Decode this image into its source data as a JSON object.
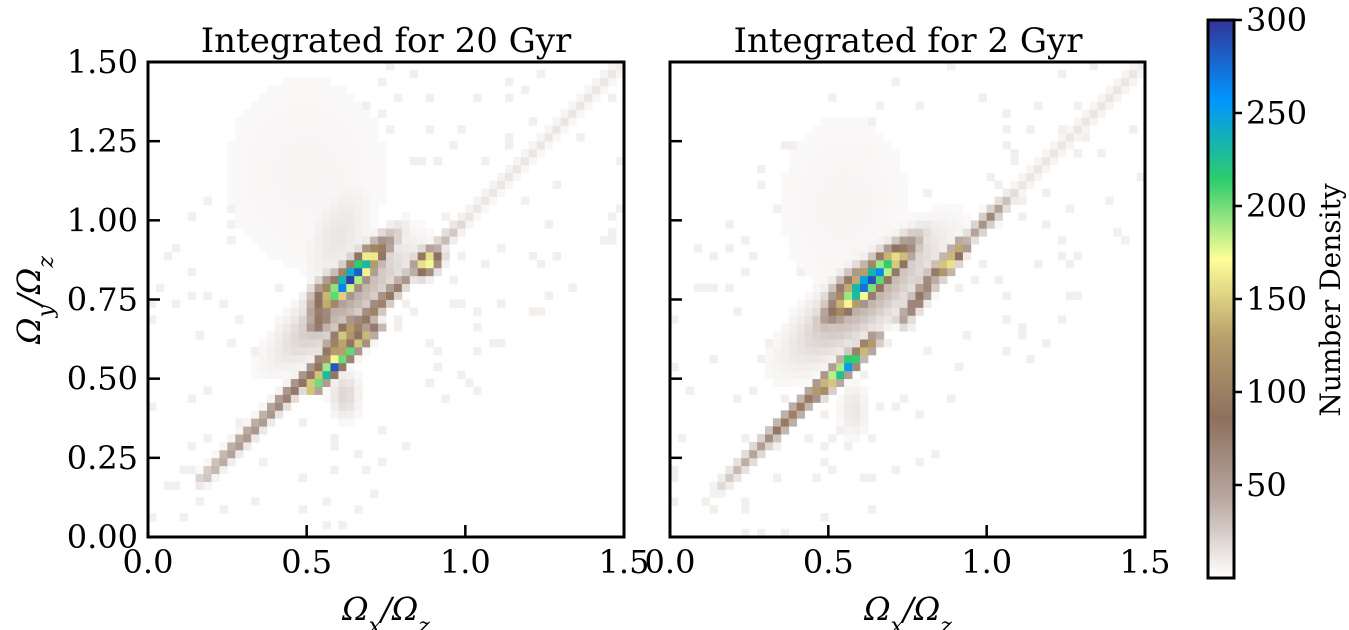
{
  "chart_data": [
    {
      "type": "heatmap",
      "title": "Integrated for 20 Gyr",
      "xlabel": "Ωx/Ωz",
      "ylabel": "Ωy/Ωz",
      "xlim": [
        0.0,
        1.5
      ],
      "ylim": [
        0.0,
        1.5
      ],
      "bin_size": 0.025,
      "xticks": [
        "0.0",
        "0.5",
        "1.0",
        "1.5"
      ],
      "yticks": [
        "0.00",
        "0.25",
        "0.50",
        "0.75",
        "1.00",
        "1.25",
        "1.50"
      ],
      "ridges": [
        {
          "x0": 0.17,
          "y0": 0.18,
          "x1": 1.48,
          "y1": 1.48,
          "base": 12,
          "peaks": [
            {
              "t": 0.12,
              "v": 60,
              "w": 0.1
            },
            {
              "t": 0.25,
              "v": 90,
              "w": 0.1
            },
            {
              "t": 0.33,
              "v": 140,
              "w": 0.06
            },
            {
              "t": 0.42,
              "v": 110,
              "w": 0.06
            },
            {
              "t": 0.55,
              "v": 40,
              "w": 0.06
            }
          ]
        }
      ],
      "streaks": [
        {
          "x0": 0.5,
          "y0": 0.46,
          "x1": 0.73,
          "y1": 0.68,
          "base": 40,
          "peaks": [
            {
              "t": 0.15,
              "v": 220,
              "w": 0.15
            },
            {
              "t": 0.35,
              "v": 300,
              "w": 0.15
            },
            {
              "t": 0.55,
              "v": 220,
              "w": 0.12
            },
            {
              "t": 0.75,
              "v": 160,
              "w": 0.12
            },
            {
              "t": 0.95,
              "v": 80,
              "w": 0.1
            }
          ]
        }
      ],
      "blobs": [
        {
          "x": 0.64,
          "y": 0.82,
          "amp": 300,
          "major": 0.09,
          "minor": 0.022,
          "angle": 45
        },
        {
          "x": 0.58,
          "y": 0.77,
          "amp": 150,
          "major": 0.05,
          "minor": 0.03,
          "angle": 45
        },
        {
          "x": 0.62,
          "y": 0.74,
          "amp": 40,
          "major": 0.16,
          "minor": 0.05,
          "angle": 40
        },
        {
          "x": 0.88,
          "y": 0.87,
          "amp": 200,
          "major": 0.03,
          "minor": 0.02,
          "angle": 45
        },
        {
          "x": 0.54,
          "y": 0.68,
          "amp": 100,
          "major": 0.03,
          "minor": 0.02,
          "angle": 45
        },
        {
          "x": 0.62,
          "y": 0.64,
          "amp": 150,
          "major": 0.05,
          "minor": 0.02,
          "angle": 45
        },
        {
          "x": 0.6,
          "y": 0.95,
          "amp": 12,
          "major": 0.12,
          "minor": 0.06,
          "angle": 70
        },
        {
          "x": 0.62,
          "y": 0.45,
          "amp": 20,
          "major": 0.05,
          "minor": 0.03,
          "angle": 90
        },
        {
          "x": 0.5,
          "y": 1.15,
          "amp": 5,
          "major": 0.3,
          "minor": 0.25,
          "angle": 90
        }
      ]
    },
    {
      "type": "heatmap",
      "title": "Integrated for 2 Gyr",
      "xlabel": "Ωx/Ωz",
      "xlim": [
        0.0,
        1.5
      ],
      "ylim": [
        0.0,
        1.5
      ],
      "bin_size": 0.025,
      "xticks": [
        "0.0",
        "0.5",
        "1.0",
        "1.5"
      ],
      "ridges": [
        {
          "x0": 0.15,
          "y0": 0.15,
          "x1": 1.48,
          "y1": 1.48,
          "base": 12,
          "peaks": [
            {
              "t": 0.12,
              "v": 50,
              "w": 0.08
            },
            {
              "t": 0.18,
              "v": 100,
              "w": 0.06
            },
            {
              "t": 0.26,
              "v": 140,
              "w": 0.05
            },
            {
              "t": 0.53,
              "v": 80,
              "w": 0.05
            },
            {
              "t": 0.64,
              "v": 60,
              "w": 0.04
            }
          ]
        }
      ],
      "streaks": [
        {
          "x0": 0.45,
          "y0": 0.44,
          "x1": 0.66,
          "y1": 0.64,
          "base": 40,
          "peaks": [
            {
              "t": 0.2,
              "v": 150,
              "w": 0.15
            },
            {
              "t": 0.4,
              "v": 260,
              "w": 0.15
            },
            {
              "t": 0.55,
              "v": 300,
              "w": 0.12
            },
            {
              "t": 0.8,
              "v": 160,
              "w": 0.12
            }
          ]
        },
        {
          "x0": 0.72,
          "y0": 0.67,
          "x1": 0.93,
          "y1": 0.93,
          "base": 40,
          "peaks": [
            {
              "t": 0.3,
              "v": 90,
              "w": 0.2
            },
            {
              "t": 0.75,
              "v": 200,
              "w": 0.1
            },
            {
              "t": 0.9,
              "v": 140,
              "w": 0.1
            }
          ]
        }
      ],
      "blobs": [
        {
          "x": 0.63,
          "y": 0.81,
          "amp": 290,
          "major": 0.1,
          "minor": 0.025,
          "angle": 42
        },
        {
          "x": 0.58,
          "y": 0.78,
          "amp": 160,
          "major": 0.06,
          "minor": 0.03,
          "angle": 42
        },
        {
          "x": 0.62,
          "y": 0.76,
          "amp": 40,
          "major": 0.18,
          "minor": 0.06,
          "angle": 40
        },
        {
          "x": 0.72,
          "y": 0.88,
          "amp": 180,
          "major": 0.03,
          "minor": 0.02,
          "angle": 45
        },
        {
          "x": 1.01,
          "y": 1.01,
          "amp": 70,
          "major": 0.015,
          "minor": 0.015,
          "angle": 0
        },
        {
          "x": 0.58,
          "y": 0.4,
          "amp": 12,
          "major": 0.06,
          "minor": 0.03,
          "angle": 90
        },
        {
          "x": 0.55,
          "y": 1.05,
          "amp": 5,
          "major": 0.28,
          "minor": 0.2,
          "angle": 90
        }
      ]
    }
  ],
  "colorbar": {
    "label": "Number Density",
    "min": 0,
    "max": 300,
    "ticks": [
      "50",
      "100",
      "150",
      "200",
      "250",
      "300"
    ],
    "colormap": "terrain_r",
    "stops": [
      "#ffffff",
      "#b7a79f",
      "#8e705f",
      "#b79f6c",
      "#fefe98",
      "#2ccd6b",
      "#0096fe",
      "#333399"
    ]
  }
}
